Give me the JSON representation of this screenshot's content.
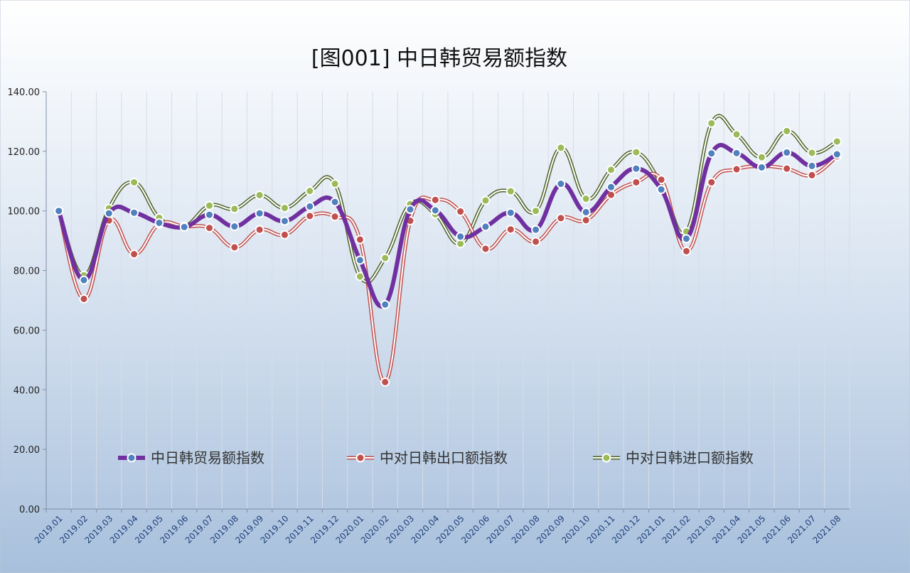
{
  "chart_data": {
    "type": "line",
    "title": "[图001] 中日韩贸易额指数",
    "xlabel": "",
    "ylabel": "",
    "ylim": [
      0,
      140
    ],
    "yticks": [
      "0.00",
      "20.00",
      "40.00",
      "60.00",
      "80.00",
      "100.00",
      "120.00",
      "140.00"
    ],
    "grid": "vertical",
    "legend_position": "bottom-inside",
    "categories": [
      "2019.01",
      "2019.02",
      "2019.03",
      "2019.04",
      "2019.05",
      "2019.06",
      "2019.07",
      "2019.08",
      "2019.09",
      "2019.10",
      "2019.11",
      "2019.12",
      "2020.01",
      "2020.02",
      "2020.03",
      "2020.04",
      "2020.05",
      "2020.06",
      "2020.07",
      "2020.08",
      "2020.09",
      "2020.10",
      "2020.11",
      "2020.12",
      "2021.01",
      "2021.02",
      "2021.03",
      "2021.04",
      "2021.05",
      "2021.06",
      "2021.07",
      "2021.08"
    ],
    "series": [
      {
        "name": "中日韩贸易额指数",
        "line_color": "#7030a0",
        "marker_color": "#4f81bd",
        "values": [
          100.0,
          76.8,
          99.2,
          99.4,
          96.0,
          94.6,
          98.7,
          94.8,
          99.2,
          96.6,
          101.5,
          103.0,
          83.5,
          68.6,
          100.5,
          100.2,
          91.4,
          94.7,
          99.4,
          93.7,
          109.1,
          99.6,
          108.0,
          114.2,
          107.2,
          90.7,
          119.3,
          119.4,
          114.6,
          119.6,
          115.1,
          119.0
        ]
      },
      {
        "name": "中对日韩出口额指数",
        "line_color": "#c0504d",
        "marker_color": "#c0504d",
        "values": [
          100.0,
          70.5,
          96.8,
          85.5,
          95.6,
          94.8,
          94.3,
          87.8,
          93.7,
          92.0,
          98.3,
          98.1,
          90.4,
          42.6,
          96.7,
          103.7,
          99.8,
          87.3,
          93.8,
          89.7,
          97.6,
          96.9,
          105.4,
          109.6,
          110.5,
          86.5,
          109.6,
          114.0,
          115.0,
          114.2,
          112.0,
          118.3
        ]
      },
      {
        "name": "中对日韩进口额指数",
        "line_color": "#4f6228",
        "marker_color": "#9bbb59",
        "values": [
          100.0,
          78.4,
          100.9,
          109.6,
          97.7,
          94.9,
          101.8,
          100.7,
          105.3,
          101.0,
          106.7,
          109.1,
          78.0,
          84.2,
          102.3,
          98.9,
          89.0,
          103.5,
          106.6,
          100.0,
          121.2,
          104.1,
          113.8,
          119.7,
          109.0,
          93.1,
          129.4,
          125.7,
          118.0,
          126.8,
          119.5,
          123.3
        ]
      }
    ]
  }
}
